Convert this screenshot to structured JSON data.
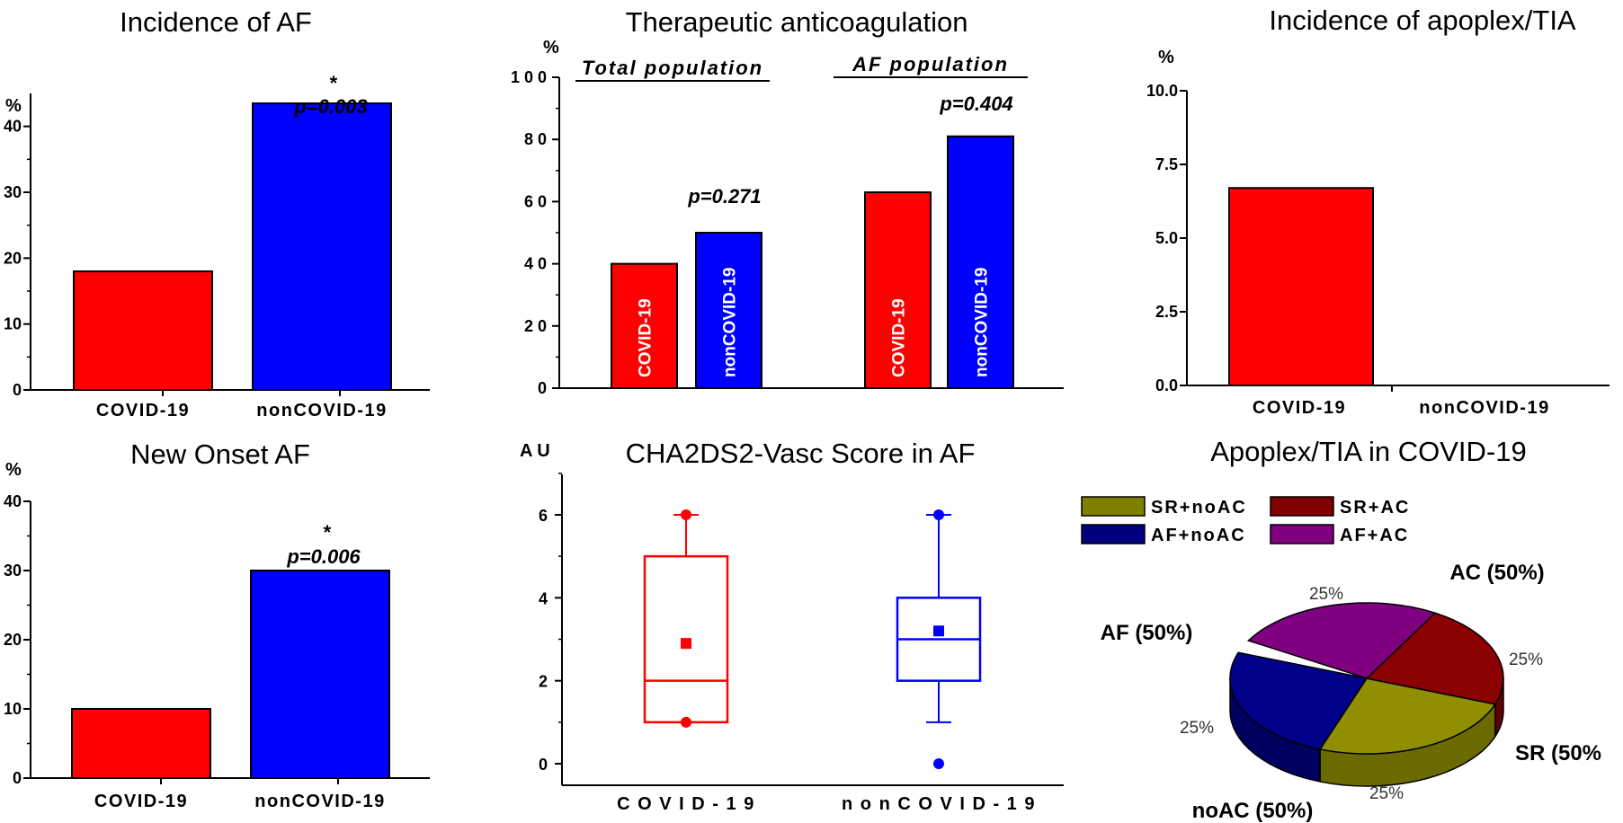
{
  "chart_data": [
    {
      "id": "af",
      "type": "bar",
      "title": "Incidence of AF",
      "ylabel": "%",
      "categories": [
        "COVID-19",
        "nonCOVID-19"
      ],
      "values": [
        18,
        43.5
      ],
      "colors": [
        "#ff0000",
        "#0000ff"
      ],
      "ylim": [
        0,
        45
      ],
      "yticks": [
        "0",
        "10",
        "20",
        "30",
        "40"
      ],
      "annotation": {
        "star": "*",
        "p": "p=0.003"
      }
    },
    {
      "id": "newaf",
      "type": "bar",
      "title": "New Onset AF",
      "ylabel": "%",
      "categories": [
        "COVID-19",
        "nonCOVID-19"
      ],
      "values": [
        10,
        30
      ],
      "colors": [
        "#ff0000",
        "#0000ff"
      ],
      "ylim": [
        0,
        40
      ],
      "yticks": [
        "0",
        "10",
        "20",
        "30",
        "40"
      ],
      "annotation": {
        "star": "*",
        "p": "p=0.006"
      }
    },
    {
      "id": "ac",
      "type": "bar",
      "title": "Therapeutic anticoagulation",
      "ylabel": "%",
      "ylim": [
        0,
        100
      ],
      "yticks": [
        "0",
        "2 0",
        "4 0",
        "6 0",
        "8 0",
        "1 0 0"
      ],
      "groups": [
        {
          "label": "Total population",
          "p": "p=0.271",
          "values": [
            40,
            50
          ]
        },
        {
          "label": "AF population",
          "p": "p=0.404",
          "values": [
            63,
            81
          ]
        }
      ],
      "bar_labels": [
        "COVID-19",
        "nonCOVID-19"
      ],
      "colors": [
        "#ff0000",
        "#0000ff"
      ]
    },
    {
      "id": "apoplex",
      "type": "bar",
      "title": "Incidence of apoplex/TIA",
      "ylabel": "%",
      "categories": [
        "COVID-19",
        "nonCOVID-19"
      ],
      "values": [
        6.7,
        0
      ],
      "colors": [
        "#ff0000",
        "#0000ff"
      ],
      "ylim": [
        0,
        10
      ],
      "yticks": [
        "0.0",
        "2.5",
        "5.0",
        "7.5",
        "10.0"
      ]
    },
    {
      "id": "cha",
      "type": "box",
      "title": "CHA2DS2-Vasc Score in AF",
      "ylabel": "A U",
      "ylim": [
        0,
        7
      ],
      "yticks": [
        "0",
        "2",
        "4",
        "6"
      ],
      "categories": [
        "C O V I D - 1 9",
        "n o n C O V I D - 1 9"
      ],
      "boxes": [
        {
          "color": "#ff0000",
          "min": 1,
          "q1": 1,
          "median": 2,
          "q3": 5,
          "max": 6,
          "mean": 2.9,
          "outliers": [
            1,
            6
          ]
        },
        {
          "color": "#0000ff",
          "min": 1,
          "q1": 2,
          "median": 3,
          "q3": 4,
          "max": 6,
          "mean": 3.2,
          "outliers": [
            6,
            0
          ]
        }
      ]
    },
    {
      "id": "pie",
      "type": "pie",
      "title": "Apoplex/TIA in COVID-19",
      "legend": [
        {
          "label": "SR+noAC",
          "color": "#808000"
        },
        {
          "label": "SR+AC",
          "color": "#800000"
        },
        {
          "label": "AF+noAC",
          "color": "#000080"
        },
        {
          "label": "AF+AC",
          "color": "#800080"
        }
      ],
      "slices": [
        {
          "label": "SR+noAC",
          "value": 25,
          "color": "#8f8f00",
          "side": "#6a6a00",
          "pct": "25%"
        },
        {
          "label": "SR+AC",
          "value": 25,
          "color": "#8b0000",
          "side": "#5e0000",
          "pct": "25%"
        },
        {
          "label": "AF+AC",
          "value": 25,
          "color": "#800080",
          "side": "#5a005a",
          "pct": "25%"
        },
        {
          "label": "AF+noAC",
          "value": 25,
          "color": "#00008b",
          "side": "#000060",
          "pct": "25%"
        }
      ],
      "group_labels": {
        "ac": "AC (50%)",
        "af": "AF (50%)",
        "sr": "SR (50%",
        "noac": "noAC (50%)"
      }
    }
  ]
}
